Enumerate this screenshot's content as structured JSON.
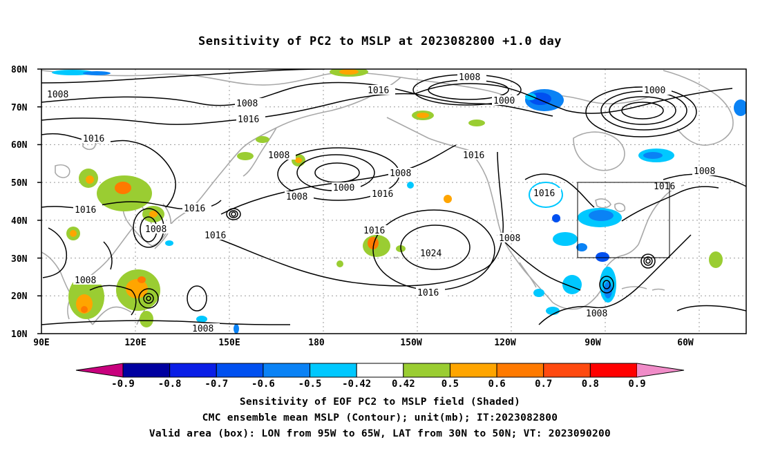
{
  "title": "Sensitivity of PC2 to MSLP at 2023082800 +1.0 day",
  "map": {
    "lat_ticks": [
      "80N",
      "70N",
      "60N",
      "50N",
      "40N",
      "30N",
      "20N",
      "10N"
    ],
    "lon_ticks": [
      "90E",
      "120E",
      "150E",
      "180",
      "150W",
      "120W",
      "90W",
      "60W"
    ],
    "contour_labels": {
      "l1008_a": "1008",
      "l1008_b": "1008",
      "l1008_c": "1008",
      "l1008_d": "1008",
      "l1008_e": "1008",
      "l1008_f": "1008",
      "l1008_g": "1008",
      "l1008_h": "1008",
      "l1008_i": "1008",
      "l1008_j": "1008",
      "l1008_k": "1008",
      "l1008_l": "1008",
      "l1016_a": "1016",
      "l1016_b": "1016",
      "l1016_c": "1016",
      "l1016_d": "1016",
      "l1016_e": "1016",
      "l1016_f": "1016",
      "l1016_g": "1016",
      "l1016_h": "1016",
      "l1016_i": "1016",
      "l1016_j": "1016",
      "l1016_k": "1016",
      "l1016_l": "1016",
      "l1000_a": "1000",
      "l1000_b": "1000",
      "l1000_c": "1000",
      "l1024": "1024"
    },
    "valid_box": {
      "lon_west": "95W",
      "lon_east": "65W",
      "lat_south": "30N",
      "lat_north": "50N"
    }
  },
  "colorbar": {
    "labels": [
      "-0.9",
      "-0.8",
      "-0.7",
      "-0.6",
      "-0.5",
      "-0.42",
      "0.42",
      "0.5",
      "0.6",
      "0.7",
      "0.8",
      "0.9"
    ],
    "colors": [
      "#0000a0",
      "#0a1ee6",
      "#0050f0",
      "#0a82f5",
      "#00c8ff",
      "#ffffff",
      "#9acd32",
      "#ffa500",
      "#ff7a00",
      "#ff4a10",
      "#ff0000"
    ],
    "low_end_color": "#c8007d",
    "high_end_color": "#f08cc8"
  },
  "captions": {
    "line1": "Sensitivity of EOF PC2 to MSLP field (Shaded)",
    "line2": "CMC ensemble mean MSLP (Contour); unit(mb); IT:2023082800",
    "line3": "Valid area (box): LON from 95W to 65W, LAT from 30N to 50N; VT: 2023090200"
  }
}
